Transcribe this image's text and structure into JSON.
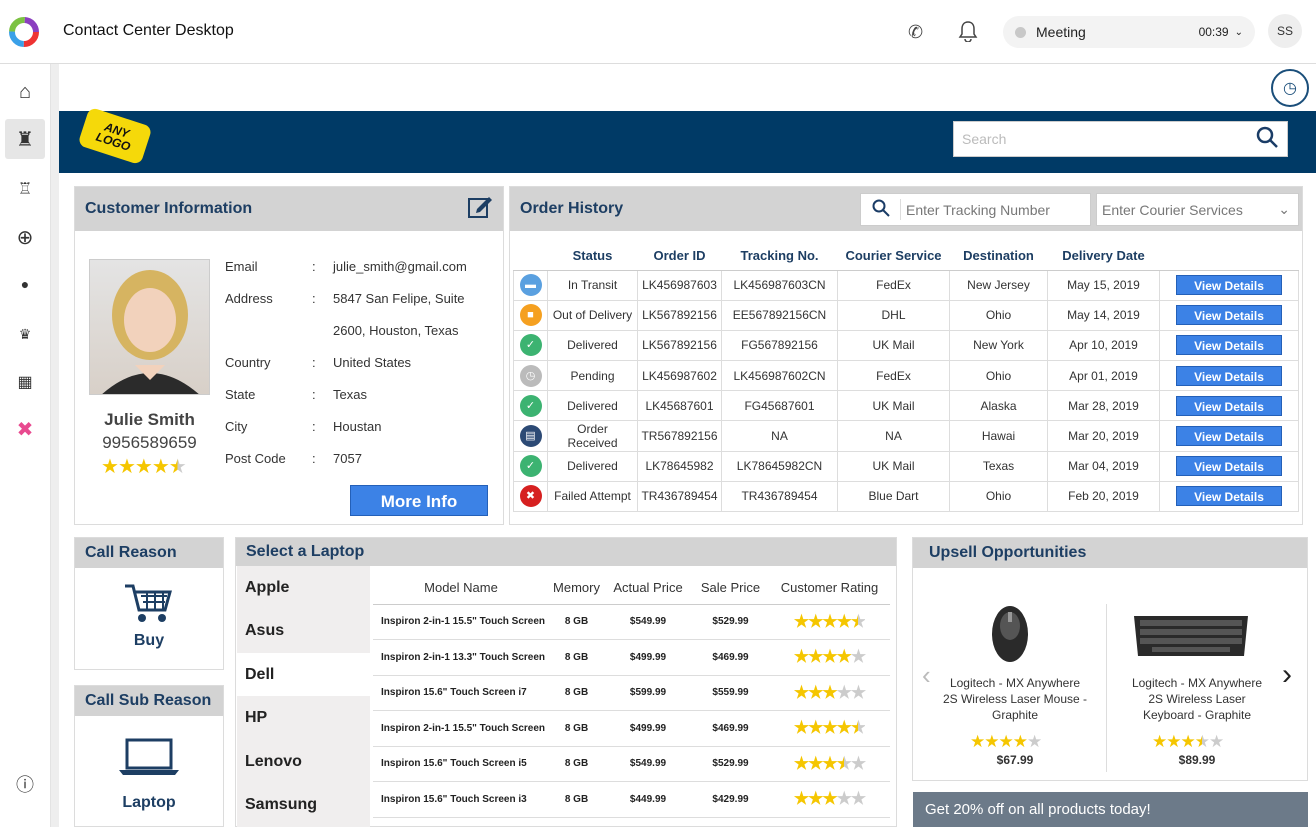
{
  "app": {
    "title": "Contact Center Desktop",
    "status": "Meeting",
    "timer": "00:39",
    "avatar": "SS"
  },
  "search": {
    "placeholder": "Search"
  },
  "logo": "ANY LOGO",
  "customer": {
    "heading": "Customer Information",
    "name": "Julie Smith",
    "phone": "9956589659",
    "rating": 4.5,
    "fields": [
      {
        "label": "Email",
        "value": "julie_smith@gmail.com"
      },
      {
        "label": "Address",
        "value": "5847 San Felipe, Suite"
      },
      {
        "label": "",
        "value": "2600, Houston, Texas"
      },
      {
        "label": "Country",
        "value": "United States"
      },
      {
        "label": "State",
        "value": "Texas"
      },
      {
        "label": "City",
        "value": "Houstan"
      },
      {
        "label": "Post Code",
        "value": "7057"
      }
    ],
    "more_info": "More Info"
  },
  "orders": {
    "heading": "Order History",
    "tracking_placeholder": "Enter Tracking Number",
    "courier_placeholder": "Enter Courier Services",
    "columns": [
      "Status",
      "Order ID",
      "Tracking No.",
      "Courier Service",
      "Destination",
      "Delivery Date"
    ],
    "button": "View Details",
    "rows": [
      {
        "status": "In Transit",
        "color": "#5aa0e0",
        "icon": "truck-icon",
        "glyph": "▬",
        "id": "LK456987603",
        "track": "LK456987603CN",
        "courier": "FedEx",
        "dest": "New Jersey",
        "date": "May 15, 2019"
      },
      {
        "status": "Out of Delivery",
        "color": "#f5a020",
        "icon": "box-icon",
        "glyph": "■",
        "id": "LK567892156",
        "track": "EE567892156CN",
        "courier": "DHL",
        "dest": "Ohio",
        "date": "May 14, 2019"
      },
      {
        "status": "Delivered",
        "color": "#3cb371",
        "icon": "check-icon",
        "glyph": "✓",
        "id": "LK567892156",
        "track": "FG567892156",
        "courier": "UK Mail",
        "dest": "New York",
        "date": "Apr 10, 2019"
      },
      {
        "status": "Pending",
        "color": "#bbbbbb",
        "icon": "clock-icon",
        "glyph": "◷",
        "id": "LK456987602",
        "track": "LK456987602CN",
        "courier": "FedEx",
        "dest": "Ohio",
        "date": "Apr 01, 2019"
      },
      {
        "status": "Delivered",
        "color": "#3cb371",
        "icon": "check-icon",
        "glyph": "✓",
        "id": "LK45687601",
        "track": "FG45687601",
        "courier": "UK Mail",
        "dest": "Alaska",
        "date": "Mar 28, 2019"
      },
      {
        "status": "Order Received",
        "color": "#2c4a75",
        "icon": "document-icon",
        "glyph": "▤",
        "id": "TR567892156",
        "track": "NA",
        "courier": "NA",
        "dest": "Hawai",
        "date": "Mar 20, 2019"
      },
      {
        "status": "Delivered",
        "color": "#3cb371",
        "icon": "check-icon",
        "glyph": "✓",
        "id": "LK78645982",
        "track": "LK78645982CN",
        "courier": "UK Mail",
        "dest": "Texas",
        "date": "Mar 04, 2019"
      },
      {
        "status": "Failed Attempt",
        "color": "#d62020",
        "icon": "failed-truck-icon",
        "glyph": "✖",
        "id": "TR436789454",
        "track": "TR436789454",
        "courier": "Blue Dart",
        "dest": "Ohio",
        "date": "Feb 20, 2019"
      }
    ]
  },
  "call_reason": {
    "heading": "Call Reason",
    "value": "Buy"
  },
  "call_sub_reason": {
    "heading": "Call Sub Reason",
    "value": "Laptop"
  },
  "laptops": {
    "heading": "Select a Laptop",
    "brands": [
      "Apple",
      "Asus",
      "Dell",
      "HP",
      "Lenovo",
      "Samsung"
    ],
    "selected": "Dell",
    "columns": [
      "Model Name",
      "Memory",
      "Actual Price",
      "Sale Price",
      "Customer Rating"
    ],
    "rows": [
      {
        "model": "Inspiron 2-in-1 15.5\" Touch Screen",
        "mem": "8 GB",
        "actual": "$549.99",
        "sale": "$529.99",
        "rating": 4.5
      },
      {
        "model": "Inspiron 2-in-1 13.3\" Touch Screen",
        "mem": "8 GB",
        "actual": "$499.99",
        "sale": "$469.99",
        "rating": 4
      },
      {
        "model": "Inspiron  15.6\" Touch Screen i7",
        "mem": "8 GB",
        "actual": "$599.99",
        "sale": "$559.99",
        "rating": 3
      },
      {
        "model": "Inspiron 2-in-1 15.5\" Touch Screen",
        "mem": "8 GB",
        "actual": "$499.99",
        "sale": "$469.99",
        "rating": 4.5
      },
      {
        "model": "Inspiron  15.6\" Touch Screen i5",
        "mem": "8 GB",
        "actual": "$549.99",
        "sale": "$529.99",
        "rating": 3.5
      },
      {
        "model": "Inspiron  15.6\" Touch Screen i3",
        "mem": "8 GB",
        "actual": "$449.99",
        "sale": "$429.99",
        "rating": 3
      }
    ]
  },
  "upsell": {
    "heading": "Upsell Opportunities",
    "products": [
      {
        "name": "Logitech - MX Anywhere 2S Wireless Laser Mouse - Graphite",
        "price": "$67.99",
        "rating": 4
      },
      {
        "name": "Logitech - MX Anywhere 2S Wireless Laser Keyboard - Graphite",
        "price": "$89.99",
        "rating": 3.5
      }
    ],
    "promo": "Get 20% off on all products today!"
  }
}
